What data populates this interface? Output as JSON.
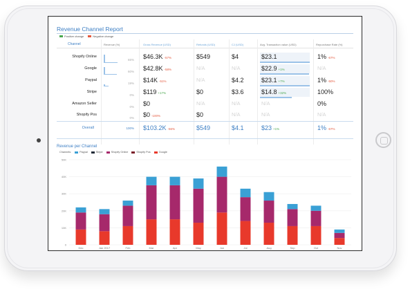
{
  "report": {
    "title": "Revenue Channel Report",
    "legend": [
      {
        "label": "Positive change",
        "color": "#4aa84f"
      },
      {
        "label": "Negative change",
        "color": "#e45a3f"
      }
    ],
    "headers": {
      "channel": "Channel",
      "revenue_pct": "Revenue (%)",
      "gross_revenue": "Gross Revenue (USD)",
      "refunds": "Refunds (USD)",
      "cj": "CJ (USD)",
      "avg_transaction": "Avg. Transaction value (USD)",
      "repurchase": "Repurchase Rate (%)"
    },
    "rows": [
      {
        "channel": "Shopify Online",
        "pct": "65%",
        "pct_value": 65,
        "gross": "$46.3K",
        "gross_chg": "-57%",
        "gross_chg_type": "neg",
        "refunds": "$549",
        "cj": "$4",
        "avg": "$23.1",
        "avg_chg": "",
        "avg_chg_type": "",
        "avg_fill": 100,
        "rep": "1%",
        "rep_chg": "-67%",
        "rep_chg_type": "neg"
      },
      {
        "channel": "Google",
        "pct": "60%",
        "pct_value": 60,
        "gross": "$42.8K",
        "gross_chg": "-58%",
        "gross_chg_type": "neg",
        "refunds": "N/A",
        "cj": "N/A",
        "avg": "$22.9",
        "avg_chg": "+1%",
        "avg_chg_type": "pos",
        "avg_fill": 99,
        "rep": "N/A",
        "rep_chg": "",
        "rep_chg_type": ""
      },
      {
        "channel": "Paypal",
        "pct": "19%",
        "pct_value": 19,
        "gross": "$14K",
        "gross_chg": "-51%",
        "gross_chg_type": "neg",
        "refunds": "N/A",
        "cj": "$4.2",
        "avg": "$23.1",
        "avg_chg": "+7%",
        "avg_chg_type": "pos",
        "avg_fill": 100,
        "rep": "1%",
        "rep_chg": "-50%",
        "rep_chg_type": "neg"
      },
      {
        "channel": "Stripe",
        "pct": "0%",
        "pct_value": 0,
        "gross": "$119",
        "gross_chg": "+17%",
        "gross_chg_type": "pos",
        "refunds": "$0",
        "cj": "$3.6",
        "avg": "$14.8",
        "avg_chg": "+32%",
        "avg_chg_type": "pos",
        "avg_fill": 64,
        "rep": "100%",
        "rep_chg": "",
        "rep_chg_type": ""
      },
      {
        "channel": "Amazon Seller",
        "pct": "0%",
        "pct_value": 0,
        "gross": "$0",
        "gross_chg": "",
        "gross_chg_type": "",
        "refunds": "N/A",
        "cj": "N/A",
        "avg": "N/A",
        "avg_chg": "",
        "avg_chg_type": "",
        "avg_fill": 0,
        "rep": "0%",
        "rep_chg": "",
        "rep_chg_type": ""
      },
      {
        "channel": "Shopify Pos",
        "pct": "0%",
        "pct_value": 0,
        "gross": "$0",
        "gross_chg": "-100%",
        "gross_chg_type": "neg",
        "refunds": "$0",
        "cj": "N/A",
        "avg": "N/A",
        "avg_chg": "",
        "avg_chg_type": "",
        "avg_fill": 0,
        "rep": "N/A",
        "rep_chg": "",
        "rep_chg_type": ""
      }
    ],
    "overall": {
      "channel": "Overall",
      "pct": "100%",
      "gross": "$103.2K",
      "gross_chg": "-56%",
      "refunds": "$549",
      "cj": "$4.1",
      "avg": "$23",
      "avg_chg": "+1%",
      "rep": "1%",
      "rep_chg": "-67%"
    }
  },
  "revenue_chart": {
    "title": "Revenue per Channel",
    "legend_label": "Channels:",
    "chart_data": {
      "type": "bar",
      "stacked": true,
      "title": "Revenue per Channel",
      "categories": [
        "Dec",
        "Jan 2017",
        "Feb",
        "Mar",
        "Apr",
        "May",
        "Jun",
        "Jul",
        "Aug",
        "Sep",
        "Oct",
        "Nov"
      ],
      "ylim": [
        0,
        50000
      ],
      "yticks": [
        "0",
        "10K",
        "20K",
        "30K",
        "40K",
        "50K"
      ],
      "series": [
        {
          "name": "Google",
          "color": "#e8392b",
          "values": [
            9000,
            8000,
            11000,
            15000,
            15000,
            13000,
            19000,
            14000,
            13000,
            11000,
            11000,
            4000
          ]
        },
        {
          "name": "Shopify Pos",
          "color": "#7a1f2a",
          "values": [
            0,
            0,
            0,
            0,
            0,
            0,
            0,
            0,
            0,
            0,
            0,
            0
          ]
        },
        {
          "name": "Shopify Online",
          "color": "#a6296b",
          "values": [
            10000,
            10000,
            12000,
            20000,
            20000,
            20000,
            21000,
            14000,
            13000,
            10000,
            9000,
            3000
          ]
        },
        {
          "name": "Stripe",
          "color": "#222b38",
          "values": [
            0,
            0,
            0,
            0,
            0,
            0,
            0,
            0,
            0,
            0,
            0,
            0
          ]
        },
        {
          "name": "Paypal",
          "color": "#3aa0d5",
          "values": [
            3000,
            3000,
            3000,
            5000,
            5000,
            6000,
            6000,
            5000,
            5000,
            3000,
            3000,
            2000
          ]
        }
      ],
      "grid": true,
      "legend_position": "top-left"
    }
  }
}
